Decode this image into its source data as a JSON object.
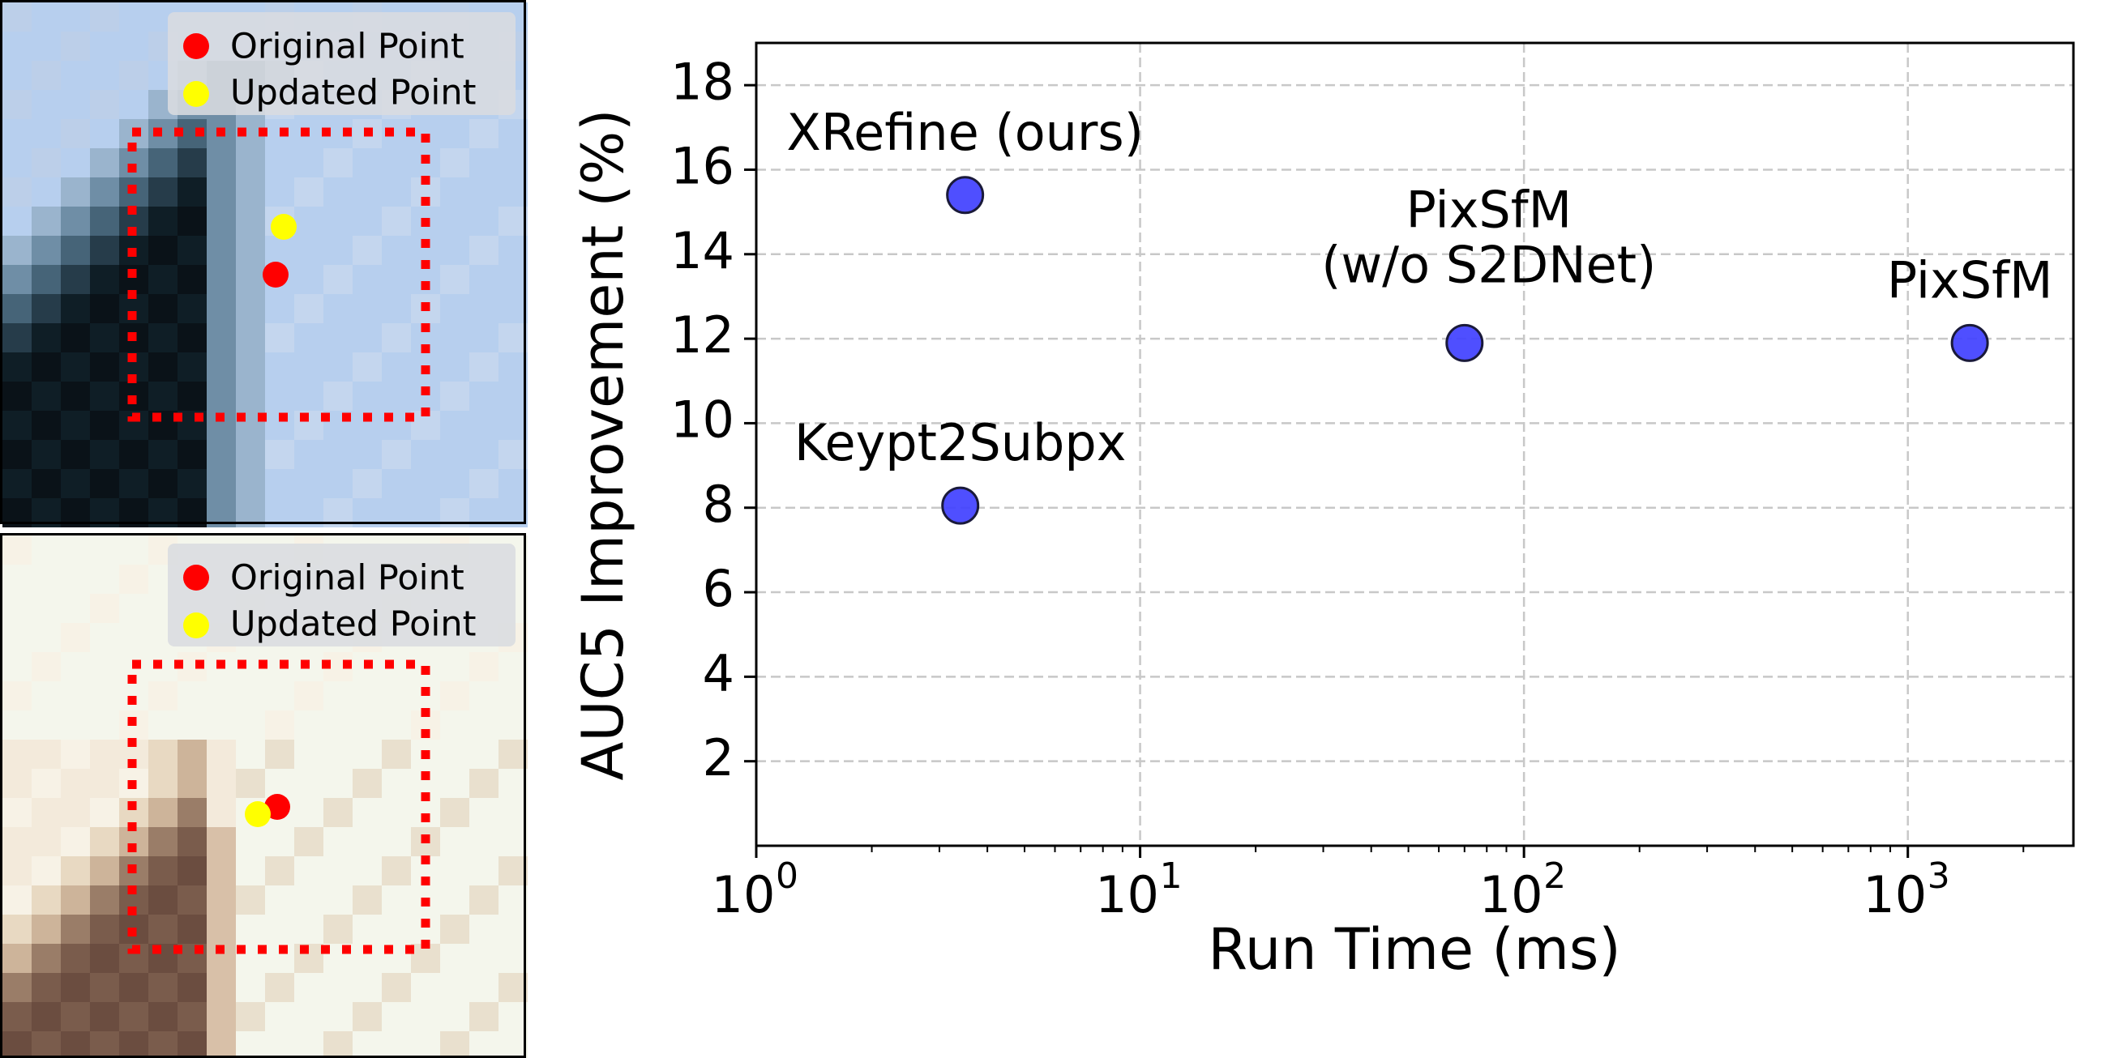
{
  "panels": [
    {
      "legend": [
        "Original Point",
        "Updated Point"
      ],
      "colors": {
        "original": "#ff0000",
        "updated": "#ffff00",
        "window": "#ff0000"
      },
      "pixel_palette": [
        "#b7cfee",
        "#bccfe9",
        "#c4d6ee",
        "#9ab4cd",
        "#6f8ea6",
        "#466478",
        "#263c4a",
        "#0f1e26",
        "#0a1218",
        "#122533",
        "#5a7590"
      ]
    },
    {
      "legend": [
        "Original Point",
        "Updated Point"
      ],
      "colors": {
        "original": "#ff0000",
        "updated": "#ffff00",
        "window": "#ff0000"
      },
      "pixel_palette": [
        "#f4f6ec",
        "#f7f2e6",
        "#f3eadb",
        "#e8d9c2",
        "#cdb49a",
        "#9a7d68",
        "#7a5c4c",
        "#6b4d40",
        "#d8c0a8",
        "#e9e0ce"
      ]
    }
  ],
  "chart_data": {
    "type": "scatter",
    "xlabel": "Run Time (ms)",
    "ylabel": "AUC5 Improvement (%)",
    "xscale": "log",
    "xlim": [
      1,
      2700
    ],
    "ylim": [
      0,
      19
    ],
    "grid": true,
    "x_ticks": [
      1,
      10,
      100,
      1000
    ],
    "x_tick_labels": [
      [
        "10",
        "0"
      ],
      [
        "10",
        "1"
      ],
      [
        "10",
        "2"
      ],
      [
        "10",
        "3"
      ]
    ],
    "y_ticks": [
      2,
      4,
      6,
      8,
      10,
      12,
      14,
      16,
      18
    ],
    "y_tick_labels": [
      "2",
      "4",
      "6",
      "8",
      "10",
      "12",
      "14",
      "16",
      "18"
    ],
    "marker_color": "#4040ff",
    "points": [
      {
        "label": [
          "XRefine (ours)"
        ],
        "x": 3.5,
        "y": 15.4
      },
      {
        "label": [
          "PixSfM",
          "(w/o S2DNet)"
        ],
        "x": 70,
        "y": 11.9
      },
      {
        "label": [
          "PixSfM"
        ],
        "x": 1450,
        "y": 11.9
      },
      {
        "label": [
          "Keypt2Subpx"
        ],
        "x": 3.4,
        "y": 8.05
      }
    ]
  }
}
